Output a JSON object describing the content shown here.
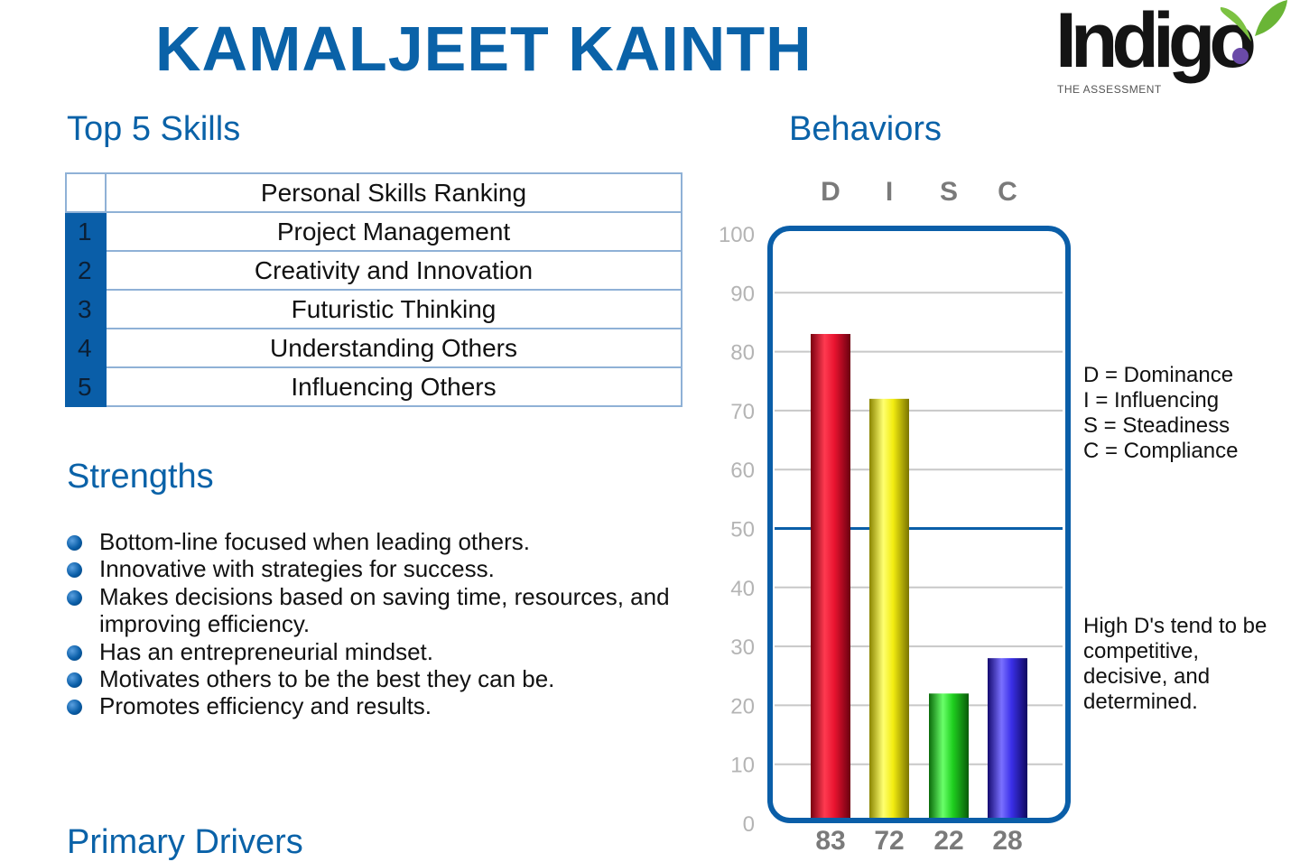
{
  "header": {
    "name": "KAMALJEET KAINTH",
    "logo_text": "Indigo",
    "logo_subtitle": "THE ASSESSMENT"
  },
  "skills": {
    "heading": "Top 5 Skills",
    "table_header": "Personal Skills Ranking",
    "rows": [
      {
        "rank": "1",
        "skill": "Project Management"
      },
      {
        "rank": "2",
        "skill": "Creativity and Innovation"
      },
      {
        "rank": "3",
        "skill": "Futuristic Thinking"
      },
      {
        "rank": "4",
        "skill": "Understanding Others"
      },
      {
        "rank": "5",
        "skill": "Influencing Others"
      }
    ]
  },
  "strengths": {
    "heading": "Strengths",
    "items": [
      "Bottom-line focused when leading others.",
      "Innovative with strategies for success.",
      "Makes decisions based on saving time, resources, and improving efficiency.",
      "Has an entrepreneurial mindset.",
      "Motivates others to be the best they can be.",
      "Promotes efficiency and results."
    ]
  },
  "drivers": {
    "heading": "Primary Drivers"
  },
  "behaviors": {
    "heading": "Behaviors",
    "legend": [
      "D = Dominance",
      "I = Influencing",
      "S = Steadiness",
      "C = Compliance"
    ],
    "note_lines": [
      "High D's tend to be",
      "competitive,",
      "decisive, and",
      "determined."
    ]
  },
  "chart_data": {
    "type": "bar",
    "categories": [
      "D",
      "I",
      "S",
      "C"
    ],
    "values": [
      83,
      72,
      22,
      28
    ],
    "value_labels": [
      "83",
      "72",
      "22",
      "28"
    ],
    "ylim": [
      0,
      100
    ],
    "yticks": [
      "0",
      "10",
      "20",
      "30",
      "40",
      "50",
      "60",
      "70",
      "80",
      "90",
      "100"
    ],
    "reference_line": 50,
    "grid": true,
    "colors": [
      "#e8132f",
      "#f2ec10",
      "#1fd01f",
      "#3a2fe8"
    ],
    "frame_color": "#0a5ea8"
  }
}
